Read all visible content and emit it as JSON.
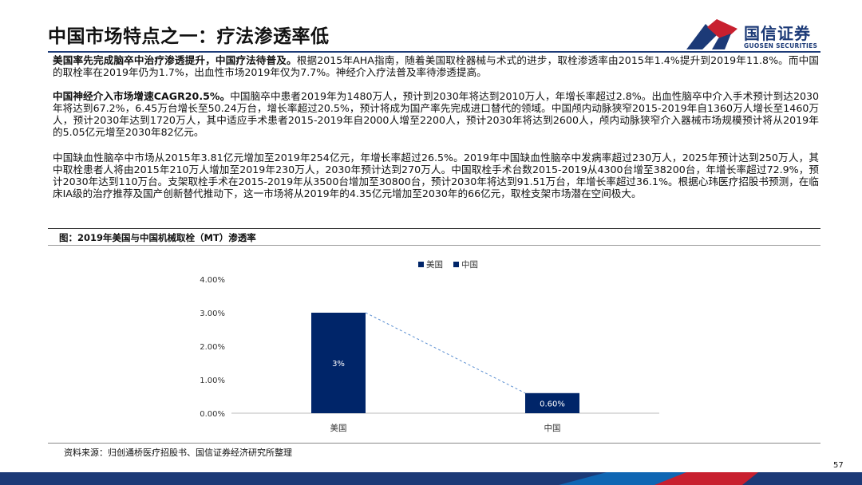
{
  "header": {
    "title": "中国市场特点之一：疗法渗透率低",
    "logo_cn": "国信证券",
    "logo_en": "GUOSEN SECURITIES"
  },
  "paragraphs": [
    {
      "lead": "美国率先完成脑卒中治疗渗透提升，中国疗法待普及。",
      "body": "根据2015年AHA指南，随着美国取栓器械与术式的进步，取栓渗透率由2015年1.4%提升到2019年11.8%。而中国的取栓率在2019年仍为1.7%，出血性市场2019年仅为7.7%。神经介入疗法普及率待渗透提高。"
    },
    {
      "lead": "中国神经介入市场增速CAGR20.5%。",
      "body": "中国脑卒中患者2019年为1480万人，预计到2030年将达到2010万人，年增长率超过2.8%。出血性脑卒中介入手术预计到达2030年将达到67.2%，6.45万台增长至50.24万台，增长率超过20.5%，预计将成为国产率先完成进口替代的领域。中国颅内动脉狭窄2015-2019年自1360万人增长至1460万人，预计2030年达到1720万人，其中适应手术患者2015-2019年自2000人增至2200人，预计2030年将达到2600人，颅内动脉狭窄介入器械市场规模预计将从2019年的5.05亿元增至2030年82亿元。"
    },
    {
      "lead": "",
      "body": "中国缺血性脑卒中市场从2015年3.81亿元增加至2019年254亿元，年增长率超过26.5%。2019年中国缺血性脑卒中发病率超过230万人，2025年预计达到250万人，其中取栓患者人将由2015年210万人增加至2019年230万人，2030年预计达到270万人。中国取栓手术台数2015-2019从4300台增至38200台，年增长率超过72.9%，预计2030年达到110万台。支架取栓手术在2015-2019年从3500台增加至30800台，预计2030年将达到91.51万台，年增长率超过36.1%。根据心玮医疗招股书预测，在临床IA级的治疗推荐及国产创新替代推动下，这一市场将从2019年的4.35亿元增加至2030年的66亿元，取栓支架市场潜在空间极大。"
    }
  ],
  "figure_title": "图：2019年美国与中国机械取栓（MT）渗透率",
  "chart_data": {
    "type": "bar",
    "categories": [
      "美国",
      "中国"
    ],
    "series": [
      {
        "name": "美国",
        "values": [
          3.0,
          null
        ],
        "label": "3%"
      },
      {
        "name": "中国",
        "values": [
          null,
          0.6
        ],
        "label": "0.60%"
      }
    ],
    "ylim": [
      0,
      4
    ],
    "y_ticks": [
      "0.00%",
      "1.00%",
      "2.00%",
      "3.00%",
      "4.00%"
    ],
    "legend": [
      "美国",
      "中国"
    ],
    "legend_position": "top",
    "bar_color": "#002569",
    "connector": "dashed",
    "title": "",
    "xlabel": "",
    "ylabel": ""
  },
  "source": "资料来源：归创通桥医疗招股书、国信证券经济研究所整理",
  "page_number": "57",
  "colors": {
    "navy": "#1c3a77",
    "bar": "#002569",
    "red": "#c8202f"
  }
}
